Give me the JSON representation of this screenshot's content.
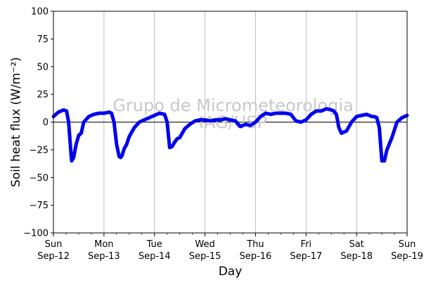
{
  "chart_data": {
    "type": "line",
    "xlabel": "Day",
    "ylabel": "Soil heat flux (W/m⁻²)",
    "ylim": [
      -100,
      100
    ],
    "yticks": [
      -100,
      -75,
      -50,
      -25,
      0,
      25,
      50,
      75,
      100
    ],
    "xlim": [
      0,
      7
    ],
    "xticks": [
      {
        "day": 0,
        "weekday": "Sun",
        "date": "Sep-12"
      },
      {
        "day": 1,
        "weekday": "Mon",
        "date": "Sep-13"
      },
      {
        "day": 2,
        "weekday": "Tue",
        "date": "Sep-14"
      },
      {
        "day": 3,
        "weekday": "Wed",
        "date": "Sep-15"
      },
      {
        "day": 4,
        "weekday": "Thu",
        "date": "Sep-16"
      },
      {
        "day": 5,
        "weekday": "Fri",
        "date": "Sep-17"
      },
      {
        "day": 6,
        "weekday": "Sat",
        "date": "Sep-18"
      },
      {
        "day": 7,
        "weekday": "Sun",
        "date": "Sep-19"
      }
    ],
    "grid": "vertical",
    "zero_line": true,
    "line_color": "#0000ee",
    "watermark": [
      "Grupo de Micrometeorologia",
      "IAG/USP"
    ],
    "series": [
      {
        "x": [
          0.0,
          0.1,
          0.2,
          0.26,
          0.3,
          0.33,
          0.36,
          0.4,
          0.45,
          0.5,
          0.55,
          0.6,
          0.7,
          0.8,
          0.9,
          1.0,
          1.1,
          1.15,
          1.2,
          1.25,
          1.3,
          1.33,
          1.36,
          1.4,
          1.45,
          1.5,
          1.6,
          1.7,
          1.8,
          1.9,
          2.0,
          2.1,
          2.2,
          2.25,
          2.3,
          2.35,
          2.4,
          2.45,
          2.5,
          2.6,
          2.7,
          2.8,
          2.9,
          3.0,
          3.1,
          3.2,
          3.3,
          3.4,
          3.5,
          3.6,
          3.7,
          3.8,
          3.9,
          4.0,
          4.1,
          4.2,
          4.3,
          4.4,
          4.5,
          4.6,
          4.7,
          4.8,
          4.9,
          5.0,
          5.1,
          5.2,
          5.3,
          5.4,
          5.5,
          5.55,
          5.6,
          5.65,
          5.7,
          5.8,
          5.9,
          6.0,
          6.1,
          6.2,
          6.3,
          6.35,
          6.4,
          6.45,
          6.5,
          6.55,
          6.6,
          6.7,
          6.8,
          6.9,
          7.0
        ],
        "y": [
          5,
          9,
          11,
          10,
          0,
          -18,
          -35,
          -32,
          -20,
          -12,
          -10,
          0,
          5,
          7,
          8,
          8,
          9,
          8,
          0,
          -20,
          -31,
          -32,
          -30,
          -24,
          -20,
          -13,
          -5,
          0,
          2,
          4,
          6,
          8,
          7,
          0,
          -23,
          -22,
          -18,
          -15,
          -14,
          -6,
          -2,
          1,
          2,
          2,
          1,
          2,
          2,
          3,
          2,
          1,
          -4,
          -2,
          -3,
          0,
          5,
          8,
          7,
          8,
          8,
          8,
          7,
          1,
          0,
          2,
          7,
          10,
          10,
          12,
          11,
          10,
          7,
          -5,
          -10,
          -8,
          0,
          5,
          6,
          7,
          5,
          5,
          4,
          -5,
          -35,
          -35,
          -25,
          -14,
          0,
          4,
          6
        ]
      }
    ]
  }
}
